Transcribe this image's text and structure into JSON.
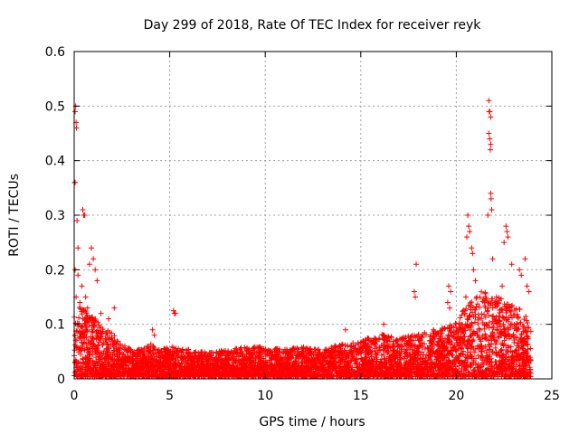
{
  "chart_data": {
    "type": "scatter",
    "title": "Day 299 of 2018, Rate Of TEC Index for receiver reyk",
    "xlabel": "GPS time / hours",
    "ylabel": "ROTI / TECUs",
    "xlim": [
      0,
      25
    ],
    "ylim": [
      0,
      0.6
    ],
    "x_ticks": [
      0,
      5,
      10,
      15,
      20,
      25
    ],
    "x_tick_labels": [
      "0",
      "5",
      "10",
      "15",
      "20",
      "25"
    ],
    "y_ticks": [
      0,
      0.1,
      0.2,
      0.3,
      0.4,
      0.5,
      0.6
    ],
    "y_tick_labels": [
      "0",
      "0.1",
      "0.2",
      "0.3",
      "0.4",
      "0.5",
      "0.6"
    ],
    "grid": true,
    "marker": "+",
    "marker_color": "#ff0000",
    "series": [
      {
        "name": "ROTI",
        "points": [
          [
            0.05,
            0.49
          ],
          [
            0.08,
            0.5
          ],
          [
            0.1,
            0.47
          ],
          [
            0.12,
            0.46
          ],
          [
            0.02,
            0.36
          ],
          [
            0.05,
            0.36
          ],
          [
            0.45,
            0.31
          ],
          [
            0.5,
            0.3
          ],
          [
            0.55,
            0.3
          ],
          [
            0.15,
            0.29
          ],
          [
            0.2,
            0.24
          ],
          [
            0.05,
            0.2
          ],
          [
            0.2,
            0.19
          ],
          [
            0.4,
            0.17
          ],
          [
            0.6,
            0.15
          ],
          [
            0.9,
            0.24
          ],
          [
            1.0,
            0.22
          ],
          [
            0.8,
            0.21
          ],
          [
            1.1,
            0.2
          ],
          [
            1.2,
            0.18
          ],
          [
            0.1,
            0.15
          ],
          [
            0.3,
            0.14
          ],
          [
            0.7,
            0.13
          ],
          [
            1.4,
            0.12
          ],
          [
            2.1,
            0.13
          ],
          [
            1.8,
            0.11
          ],
          [
            4.1,
            0.09
          ],
          [
            4.2,
            0.08
          ],
          [
            5.2,
            0.125
          ],
          [
            5.25,
            0.12
          ],
          [
            5.3,
            0.12
          ],
          [
            17.9,
            0.21
          ],
          [
            17.8,
            0.16
          ],
          [
            17.85,
            0.15
          ],
          [
            19.6,
            0.17
          ],
          [
            19.7,
            0.16
          ],
          [
            19.55,
            0.14
          ],
          [
            19.65,
            0.13
          ],
          [
            16.2,
            0.1
          ],
          [
            14.2,
            0.09
          ],
          [
            18.8,
            0.09
          ],
          [
            21.7,
            0.51
          ],
          [
            21.72,
            0.49
          ],
          [
            21.75,
            0.49
          ],
          [
            21.8,
            0.48
          ],
          [
            21.7,
            0.45
          ],
          [
            21.75,
            0.44
          ],
          [
            21.8,
            0.43
          ],
          [
            21.78,
            0.42
          ],
          [
            21.8,
            0.34
          ],
          [
            21.82,
            0.33
          ],
          [
            21.85,
            0.31
          ],
          [
            21.65,
            0.3
          ],
          [
            20.6,
            0.3
          ],
          [
            20.65,
            0.28
          ],
          [
            20.7,
            0.27
          ],
          [
            20.55,
            0.26
          ],
          [
            22.6,
            0.28
          ],
          [
            22.65,
            0.27
          ],
          [
            22.7,
            0.26
          ],
          [
            22.5,
            0.25
          ],
          [
            20.8,
            0.24
          ],
          [
            20.85,
            0.23
          ],
          [
            21.9,
            0.22
          ],
          [
            22.9,
            0.21
          ],
          [
            23.3,
            0.2
          ],
          [
            23.6,
            0.22
          ],
          [
            23.4,
            0.19
          ],
          [
            20.9,
            0.2
          ],
          [
            21.0,
            0.18
          ],
          [
            22.4,
            0.17
          ],
          [
            23.7,
            0.17
          ],
          [
            23.8,
            0.16
          ],
          [
            20.5,
            0.15
          ],
          [
            22.1,
            0.15
          ]
        ],
        "band": [
          [
            0,
            0.12
          ],
          [
            0.3,
            0.13
          ],
          [
            0.6,
            0.12
          ],
          [
            1.0,
            0.11
          ],
          [
            1.5,
            0.09
          ],
          [
            2.0,
            0.08
          ],
          [
            2.5,
            0.06
          ],
          [
            3.0,
            0.05
          ],
          [
            3.5,
            0.05
          ],
          [
            4.0,
            0.06
          ],
          [
            4.5,
            0.05
          ],
          [
            5.0,
            0.055
          ],
          [
            6.0,
            0.05
          ],
          [
            7.0,
            0.045
          ],
          [
            8.0,
            0.05
          ],
          [
            9.0,
            0.055
          ],
          [
            10.0,
            0.055
          ],
          [
            11.0,
            0.05
          ],
          [
            12.0,
            0.055
          ],
          [
            13.0,
            0.05
          ],
          [
            14.0,
            0.06
          ],
          [
            15.0,
            0.065
          ],
          [
            16.0,
            0.08
          ],
          [
            17.0,
            0.07
          ],
          [
            18.0,
            0.08
          ],
          [
            19.0,
            0.085
          ],
          [
            20.0,
            0.1
          ],
          [
            20.5,
            0.13
          ],
          [
            21.0,
            0.15
          ],
          [
            21.5,
            0.16
          ],
          [
            22.0,
            0.15
          ],
          [
            22.5,
            0.14
          ],
          [
            23.0,
            0.13
          ],
          [
            23.5,
            0.12
          ],
          [
            23.9,
            0.1
          ]
        ]
      }
    ]
  }
}
